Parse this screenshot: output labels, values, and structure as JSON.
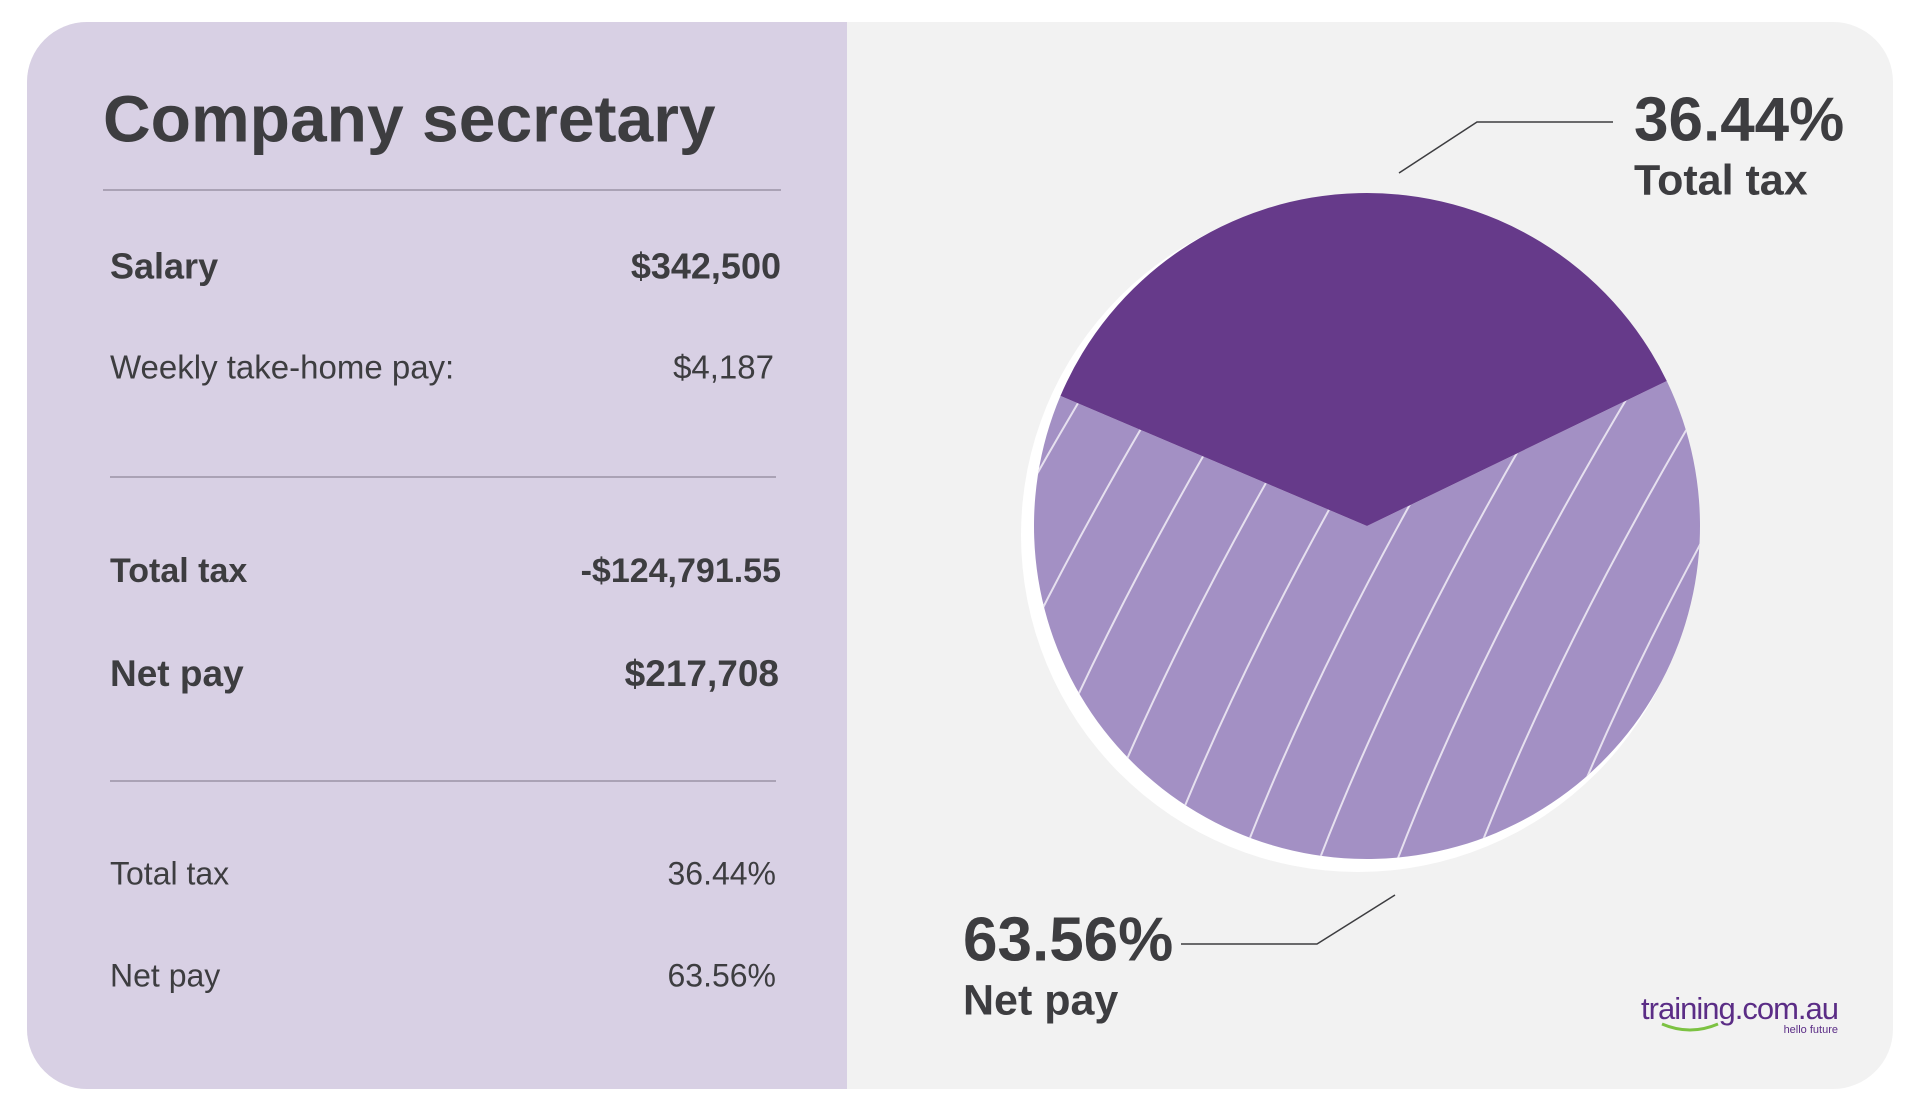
{
  "title": "Company secretary",
  "table": {
    "rows": [
      [
        "Salary",
        "$342,500"
      ],
      [
        "Weekly take-home pay:",
        "$4,187"
      ],
      [
        "Total tax",
        "-$124,791.55"
      ],
      [
        "Net pay",
        "$217,708"
      ],
      [
        "Total tax",
        "36.44%"
      ],
      [
        "Net pay",
        "63.56%"
      ]
    ]
  },
  "chart_data": {
    "type": "pie",
    "categories": [
      "Total tax",
      "Net pay"
    ],
    "values": [
      36.44,
      63.56
    ],
    "value_labels": [
      "36.44%",
      "63.56%"
    ],
    "colors": [
      "#663a8a",
      "#a390c4"
    ]
  },
  "logo": {
    "name": "training.com.au",
    "tagline": "hello future"
  }
}
